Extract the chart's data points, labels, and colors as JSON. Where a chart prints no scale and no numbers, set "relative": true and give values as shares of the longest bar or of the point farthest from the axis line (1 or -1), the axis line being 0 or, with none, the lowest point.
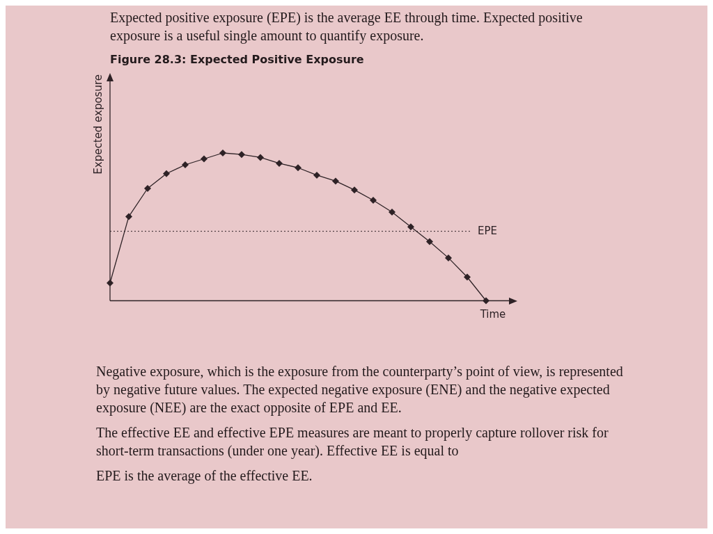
{
  "chart_data": {
    "type": "line",
    "title": "Figure 28.3: Expected Positive Exposure",
    "xlabel": "Time",
    "ylabel": "Expected exposure",
    "relative": true,
    "marker": "diamond",
    "line_style": "solid",
    "categories": [
      null,
      null,
      null,
      null,
      null,
      null,
      null,
      null,
      null,
      null,
      null,
      null,
      null,
      null,
      null,
      null,
      null,
      null,
      null,
      null,
      null
    ],
    "series": [
      {
        "color": "#2e2226",
        "values": [
          0.12,
          0.57,
          0.76,
          0.86,
          0.92,
          0.96,
          1.0,
          0.99,
          0.97,
          0.93,
          0.9,
          0.85,
          0.81,
          0.75,
          0.68,
          0.6,
          0.5,
          0.4,
          0.29,
          0.16,
          0
        ]
      }
    ],
    "ref_lines": [
      {
        "axis": "y",
        "value": 0.47,
        "label": "EPE",
        "line_style": "dotted",
        "color": "#2e2226"
      }
    ],
    "annotations": [
      "Expected positive exposure (EPE) is the average EE through time. Expected positive exposure is a useful single amount to quantify exposure.",
      "Negative exposure, which is the exposure from the counterparty’s point of view, is represented by negative future values. The expected negative exposure (ENE) and the negative expected exposure (NEE) are the exact opposite of EPE and EE.",
      "The effective EE and effective EPE measures are meant to properly capture rollover risk for short-term transactions (under one year). Effective EE is equal to",
      "EPE is the average of the effective EE."
    ]
  }
}
